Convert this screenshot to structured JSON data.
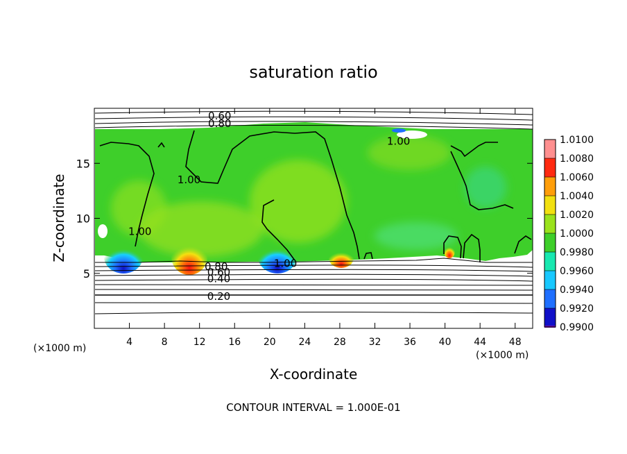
{
  "chart_data": {
    "type": "heatmap",
    "title": "saturation ratio",
    "xlabel": "X-coordinate",
    "ylabel": "Z-coordinate",
    "x_unit_left": "(×1000 m)",
    "x_unit_right": "(×1000 m)",
    "xlim": [
      0,
      50
    ],
    "ylim": [
      0,
      20
    ],
    "x_ticks": [
      4,
      8,
      12,
      16,
      20,
      24,
      28,
      32,
      36,
      40,
      44,
      48
    ],
    "y_ticks": [
      5,
      10,
      15
    ],
    "colorbar": {
      "levels": [
        "0.9900",
        "0.9920",
        "0.9940",
        "0.9960",
        "0.9980",
        "1.0000",
        "1.0020",
        "1.0040",
        "1.0060",
        "1.0080",
        "1.0100"
      ],
      "colors": [
        "#6a0dad",
        "#1010c8",
        "#1f6fff",
        "#18c8ff",
        "#18e8b0",
        "#3ecf2a",
        "#9ae21c",
        "#f2e010",
        "#ff9e0a",
        "#ff2a10",
        "#ff8f8f"
      ]
    },
    "contour_labels": [
      {
        "text": "0.60",
        "x": 14.3,
        "y": 19.3
      },
      {
        "text": "0.80",
        "x": 14.3,
        "y": 18.6
      },
      {
        "text": "1.00",
        "x": 34.7,
        "y": 17.0
      },
      {
        "text": "1.00",
        "x": 10.8,
        "y": 13.5
      },
      {
        "text": "1.00",
        "x": 5.2,
        "y": 8.8
      },
      {
        "text": "1.00",
        "x": 21.8,
        "y": 5.9
      },
      {
        "text": "0.80",
        "x": 13.9,
        "y": 5.6
      },
      {
        "text": "0.60",
        "x": 14.2,
        "y": 5.1
      },
      {
        "text": "0.40",
        "x": 14.2,
        "y": 4.5
      },
      {
        "text": "0.20",
        "x": 14.2,
        "y": 2.9
      }
    ],
    "footer": "CONTOUR INTERVAL = 1.000E-01"
  }
}
